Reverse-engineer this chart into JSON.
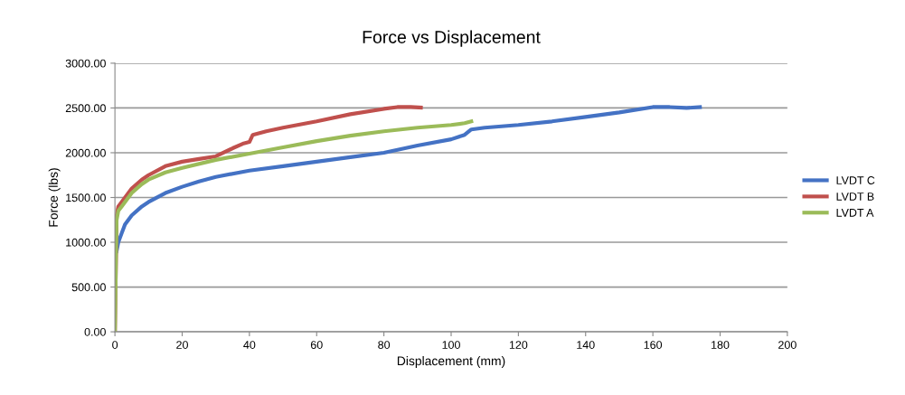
{
  "chart_data": {
    "type": "line",
    "title": "Force vs Displacement",
    "xlabel": "Displacement (mm)",
    "ylabel": "Force (lbs)",
    "xlim": [
      0,
      200
    ],
    "xticks": [
      0,
      20,
      40,
      60,
      80,
      100,
      120,
      140,
      160,
      180,
      200
    ],
    "ylim": [
      0,
      3000
    ],
    "yticks": [
      {
        "value": 0,
        "label": "0.00"
      },
      {
        "value": 500,
        "label": "500.00"
      },
      {
        "value": 1000,
        "label": "1000.00"
      },
      {
        "value": 1500,
        "label": "1500.00"
      },
      {
        "value": 2000,
        "label": "2000.00"
      },
      {
        "value": 2500,
        "label": "2500.00"
      },
      {
        "value": 3000,
        "label": "3000.00"
      }
    ],
    "grid": "y",
    "legend": "right",
    "marker": "none",
    "line_style": "solid",
    "series": [
      {
        "name": "LVDT C",
        "color": "#4472c4",
        "x": [
          0.5,
          1,
          2,
          3,
          5,
          8,
          10,
          15,
          20,
          25,
          30,
          40,
          50,
          60,
          70,
          80,
          90,
          100,
          104,
          106,
          110,
          120,
          130,
          140,
          150,
          160,
          165,
          170,
          174
        ],
        "values": [
          900,
          1000,
          1100,
          1200,
          1300,
          1400,
          1450,
          1550,
          1620,
          1680,
          1730,
          1800,
          1850,
          1900,
          1950,
          2000,
          2080,
          2150,
          2200,
          2260,
          2280,
          2310,
          2350,
          2400,
          2450,
          2510,
          2510,
          2500,
          2510
        ]
      },
      {
        "name": "LVDT B",
        "color": "#c0504d",
        "x": [
          0,
          0.5,
          1,
          2,
          3,
          5,
          8,
          10,
          15,
          20,
          25,
          30,
          35,
          38,
          40,
          41,
          45,
          50,
          60,
          70,
          80,
          84,
          88,
          91
        ],
        "values": [
          0,
          1300,
          1400,
          1450,
          1500,
          1600,
          1700,
          1750,
          1850,
          1900,
          1930,
          1960,
          2050,
          2100,
          2120,
          2200,
          2240,
          2280,
          2350,
          2430,
          2490,
          2510,
          2510,
          2505
        ]
      },
      {
        "name": "LVDT A",
        "color": "#9bbb59",
        "x": [
          0,
          0.3,
          0.5,
          1,
          2,
          3,
          5,
          8,
          10,
          15,
          20,
          30,
          40,
          50,
          60,
          70,
          80,
          90,
          100,
          104,
          106
        ],
        "values": [
          0,
          800,
          1250,
          1350,
          1400,
          1450,
          1550,
          1650,
          1700,
          1780,
          1830,
          1920,
          1990,
          2060,
          2130,
          2190,
          2240,
          2280,
          2310,
          2330,
          2350
        ]
      }
    ]
  }
}
